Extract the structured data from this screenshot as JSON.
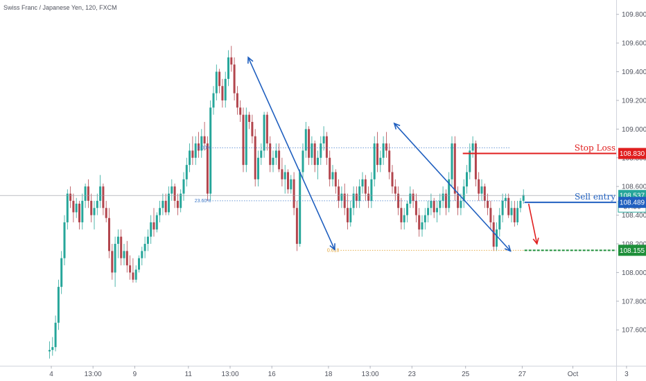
{
  "chart_data": {
    "type": "candlestick",
    "title": "Swiss Franc / Japanese Yen, 120, FXCM",
    "ylim": [
      107.35,
      109.9
    ],
    "y_ticks": [
      "109.800",
      "109.600",
      "109.400",
      "109.200",
      "109.000",
      "108.800",
      "108.600",
      "108.400",
      "108.200",
      "108.000",
      "107.800",
      "107.600"
    ],
    "x_ticks": [
      "4",
      "13:00",
      "9",
      "11",
      "13:00",
      "16",
      "18",
      "13:00",
      "23",
      "25",
      "27",
      "Oct",
      "3"
    ],
    "x_tick_index": [
      0,
      14,
      28,
      46,
      60,
      74,
      93,
      107,
      121,
      139,
      158,
      175,
      193
    ],
    "grid": false,
    "candles_ohlc": [
      [
        107.45,
        107.52,
        107.4,
        107.46
      ],
      [
        107.46,
        107.55,
        107.42,
        107.48
      ],
      [
        107.48,
        107.7,
        107.45,
        107.65
      ],
      [
        107.65,
        107.95,
        107.6,
        107.9
      ],
      [
        107.9,
        108.15,
        107.85,
        108.1
      ],
      [
        108.1,
        108.4,
        108.05,
        108.35
      ],
      [
        108.35,
        108.58,
        108.3,
        108.55
      ],
      [
        108.55,
        108.6,
        108.45,
        108.5
      ],
      [
        108.5,
        108.55,
        108.35,
        108.42
      ],
      [
        108.42,
        108.52,
        108.38,
        108.48
      ],
      [
        108.48,
        108.5,
        108.3,
        108.35
      ],
      [
        108.35,
        108.55,
        108.3,
        108.5
      ],
      [
        108.5,
        108.62,
        108.45,
        108.6
      ],
      [
        108.6,
        108.65,
        108.45,
        108.5
      ],
      [
        108.5,
        108.55,
        108.35,
        108.4
      ],
      [
        108.4,
        108.5,
        108.3,
        108.45
      ],
      [
        108.45,
        108.55,
        108.4,
        108.5
      ],
      [
        108.5,
        108.68,
        108.45,
        108.6
      ],
      [
        108.6,
        108.62,
        108.4,
        108.45
      ],
      [
        108.45,
        108.5,
        108.35,
        108.38
      ],
      [
        108.38,
        108.45,
        108.1,
        108.15
      ],
      [
        108.15,
        108.2,
        107.95,
        108.0
      ],
      [
        108.0,
        108.25,
        107.9,
        108.2
      ],
      [
        108.2,
        108.3,
        108.1,
        108.25
      ],
      [
        108.25,
        108.3,
        108.05,
        108.1
      ],
      [
        108.1,
        108.2,
        108.05,
        108.15
      ],
      [
        108.15,
        108.22,
        108.0,
        108.05
      ],
      [
        108.05,
        108.12,
        107.95,
        108.0
      ],
      [
        108.0,
        108.1,
        107.93,
        107.95
      ],
      [
        107.95,
        108.05,
        107.93,
        108.02
      ],
      [
        108.02,
        108.12,
        108.0,
        108.1
      ],
      [
        108.1,
        108.18,
        108.05,
        108.15
      ],
      [
        108.15,
        108.25,
        108.1,
        108.2
      ],
      [
        108.2,
        108.3,
        108.15,
        108.25
      ],
      [
        108.25,
        108.4,
        108.2,
        108.35
      ],
      [
        108.35,
        108.45,
        108.25,
        108.3
      ],
      [
        108.3,
        108.42,
        108.28,
        108.4
      ],
      [
        108.4,
        108.5,
        108.35,
        108.45
      ],
      [
        108.45,
        108.55,
        108.4,
        108.5
      ],
      [
        108.5,
        108.55,
        108.4,
        108.42
      ],
      [
        108.42,
        108.6,
        108.4,
        108.55
      ],
      [
        108.55,
        108.65,
        108.5,
        108.6
      ],
      [
        108.6,
        108.62,
        108.45,
        108.5
      ],
      [
        108.5,
        108.55,
        108.4,
        108.45
      ],
      [
        108.45,
        108.58,
        108.42,
        108.55
      ],
      [
        108.55,
        108.7,
        108.5,
        108.65
      ],
      [
        108.65,
        108.8,
        108.6,
        108.75
      ],
      [
        108.75,
        108.9,
        108.7,
        108.85
      ],
      [
        108.85,
        108.95,
        108.75,
        108.8
      ],
      [
        108.8,
        108.95,
        108.75,
        108.9
      ],
      [
        108.9,
        108.98,
        108.8,
        108.85
      ],
      [
        108.85,
        109.0,
        108.8,
        108.95
      ],
      [
        108.95,
        109.05,
        108.85,
        108.9
      ],
      [
        108.9,
        108.95,
        108.5,
        108.55
      ],
      [
        108.55,
        109.2,
        108.5,
        109.15
      ],
      [
        109.15,
        109.3,
        109.1,
        109.25
      ],
      [
        109.25,
        109.45,
        109.2,
        109.4
      ],
      [
        109.4,
        109.42,
        109.25,
        109.3
      ],
      [
        109.3,
        109.35,
        109.15,
        109.2
      ],
      [
        109.2,
        109.4,
        109.15,
        109.35
      ],
      [
        109.35,
        109.55,
        109.3,
        109.5
      ],
      [
        109.5,
        109.58,
        109.4,
        109.45
      ],
      [
        109.45,
        109.5,
        109.2,
        109.25
      ],
      [
        109.25,
        109.3,
        109.1,
        109.15
      ],
      [
        109.15,
        109.2,
        109.05,
        109.1
      ],
      [
        109.1,
        109.15,
        108.7,
        108.75
      ],
      [
        108.75,
        109.15,
        108.7,
        109.1
      ],
      [
        109.1,
        109.12,
        109.0,
        109.05
      ],
      [
        109.05,
        109.1,
        108.9,
        108.95
      ],
      [
        108.95,
        109.0,
        108.6,
        108.65
      ],
      [
        108.65,
        108.85,
        108.6,
        108.8
      ],
      [
        108.8,
        108.9,
        108.75,
        108.85
      ],
      [
        108.85,
        109.12,
        108.8,
        109.1
      ],
      [
        109.1,
        109.12,
        108.85,
        108.9
      ],
      [
        108.9,
        108.95,
        108.7,
        108.75
      ],
      [
        108.75,
        108.85,
        108.7,
        108.8
      ],
      [
        108.8,
        108.9,
        108.75,
        108.85
      ],
      [
        108.85,
        108.9,
        108.7,
        108.72
      ],
      [
        108.72,
        108.8,
        108.6,
        108.65
      ],
      [
        108.65,
        108.75,
        108.55,
        108.7
      ],
      [
        108.7,
        108.72,
        108.55,
        108.58
      ],
      [
        108.58,
        108.68,
        108.55,
        108.65
      ],
      [
        108.65,
        108.7,
        108.4,
        108.45
      ],
      [
        108.45,
        108.5,
        108.15,
        108.2
      ],
      [
        108.2,
        108.72,
        108.18,
        108.7
      ],
      [
        108.7,
        108.9,
        108.65,
        108.85
      ],
      [
        108.85,
        109.05,
        108.8,
        109.0
      ],
      [
        109.0,
        109.02,
        108.75,
        108.8
      ],
      [
        108.8,
        108.95,
        108.75,
        108.9
      ],
      [
        108.9,
        108.92,
        108.7,
        108.75
      ],
      [
        108.75,
        108.85,
        108.65,
        108.8
      ],
      [
        108.8,
        108.95,
        108.75,
        108.9
      ],
      [
        108.9,
        109.02,
        108.85,
        108.95
      ],
      [
        108.95,
        108.98,
        108.75,
        108.8
      ],
      [
        108.8,
        108.85,
        108.6,
        108.65
      ],
      [
        108.65,
        108.75,
        108.6,
        108.7
      ],
      [
        108.7,
        108.72,
        108.55,
        108.6
      ],
      [
        108.6,
        108.65,
        108.45,
        108.5
      ],
      [
        108.5,
        108.6,
        108.45,
        108.55
      ],
      [
        108.55,
        108.62,
        108.4,
        108.45
      ],
      [
        108.45,
        108.55,
        108.3,
        108.35
      ],
      [
        108.35,
        108.5,
        108.32,
        108.45
      ],
      [
        108.45,
        108.6,
        108.4,
        108.55
      ],
      [
        108.55,
        108.6,
        108.45,
        108.5
      ],
      [
        108.5,
        108.65,
        108.45,
        108.6
      ],
      [
        108.6,
        108.7,
        108.55,
        108.65
      ],
      [
        108.65,
        108.68,
        108.5,
        108.55
      ],
      [
        108.55,
        108.6,
        108.45,
        108.5
      ],
      [
        108.5,
        108.7,
        108.45,
        108.65
      ],
      [
        108.65,
        108.95,
        108.6,
        108.9
      ],
      [
        108.9,
        108.98,
        108.7,
        108.75
      ],
      [
        108.75,
        108.85,
        108.7,
        108.8
      ],
      [
        108.8,
        108.95,
        108.75,
        108.9
      ],
      [
        108.9,
        108.98,
        108.8,
        108.85
      ],
      [
        108.85,
        108.9,
        108.65,
        108.7
      ],
      [
        108.7,
        108.75,
        108.55,
        108.6
      ],
      [
        108.6,
        108.65,
        108.5,
        108.55
      ],
      [
        108.55,
        108.6,
        108.4,
        108.45
      ],
      [
        108.45,
        108.52,
        108.3,
        108.35
      ],
      [
        108.35,
        108.45,
        108.3,
        108.4
      ],
      [
        108.4,
        108.5,
        108.35,
        108.48
      ],
      [
        108.48,
        108.6,
        108.45,
        108.55
      ],
      [
        108.55,
        108.58,
        108.45,
        108.5
      ],
      [
        108.5,
        108.55,
        108.35,
        108.4
      ],
      [
        108.4,
        108.45,
        108.25,
        108.3
      ],
      [
        108.3,
        108.4,
        108.25,
        108.35
      ],
      [
        108.35,
        108.45,
        108.3,
        108.4
      ],
      [
        108.4,
        108.5,
        108.35,
        108.45
      ],
      [
        108.45,
        108.55,
        108.4,
        108.5
      ],
      [
        108.5,
        108.52,
        108.38,
        108.42
      ],
      [
        108.42,
        108.5,
        108.35,
        108.45
      ],
      [
        108.45,
        108.55,
        108.4,
        108.5
      ],
      [
        108.5,
        108.6,
        108.45,
        108.55
      ],
      [
        108.55,
        108.58,
        108.4,
        108.45
      ],
      [
        108.45,
        108.7,
        108.42,
        108.65
      ],
      [
        108.65,
        108.95,
        108.6,
        108.9
      ],
      [
        108.9,
        108.95,
        108.5,
        108.55
      ],
      [
        108.55,
        108.6,
        108.4,
        108.45
      ],
      [
        108.45,
        108.55,
        108.4,
        108.5
      ],
      [
        108.5,
        108.65,
        108.45,
        108.6
      ],
      [
        108.6,
        108.75,
        108.55,
        108.7
      ],
      [
        108.7,
        108.9,
        108.65,
        108.85
      ],
      [
        108.85,
        108.95,
        108.8,
        108.9
      ],
      [
        108.9,
        108.92,
        108.6,
        108.65
      ],
      [
        108.65,
        108.7,
        108.5,
        108.55
      ],
      [
        108.55,
        108.65,
        108.5,
        108.6
      ],
      [
        108.6,
        108.62,
        108.45,
        108.5
      ],
      [
        108.5,
        108.55,
        108.4,
        108.45
      ],
      [
        108.45,
        108.5,
        108.3,
        108.35
      ],
      [
        108.35,
        108.4,
        108.15,
        108.18
      ],
      [
        108.18,
        108.35,
        108.15,
        108.3
      ],
      [
        108.3,
        108.45,
        108.25,
        108.4
      ],
      [
        108.4,
        108.55,
        108.35,
        108.5
      ],
      [
        108.5,
        108.55,
        108.45,
        108.52
      ],
      [
        108.52,
        108.55,
        108.38,
        108.4
      ],
      [
        108.4,
        108.5,
        108.35,
        108.45
      ],
      [
        108.45,
        108.5,
        108.32,
        108.35
      ],
      [
        108.35,
        108.5,
        108.33,
        108.45
      ],
      [
        108.45,
        108.52,
        108.42,
        108.5
      ],
      [
        108.5,
        108.58,
        108.48,
        108.54
      ]
    ],
    "colors": {
      "up": "#26a69a",
      "down": "#b2454d",
      "blue": "#1f5fbf",
      "red": "#e01e1e",
      "green": "#1e8f3a",
      "fib": "#3c78c8",
      "fib_gold": "#e0a030"
    },
    "levels": {
      "stop_loss": {
        "label": "Stop Loss",
        "price": "108.830",
        "value": 108.83
      },
      "sell_entry": {
        "label": "Sell entry",
        "price": "108.489",
        "value": 108.489
      },
      "target": {
        "price": "108.155",
        "value": 108.155
      },
      "current": {
        "price": "108.537",
        "value": 108.537,
        "countdown": "57:56"
      }
    },
    "fib_labels": [
      "0.00%",
      "23.60%",
      "0.618"
    ],
    "fib_values": [
      108.87,
      108.5,
      108.155
    ]
  }
}
